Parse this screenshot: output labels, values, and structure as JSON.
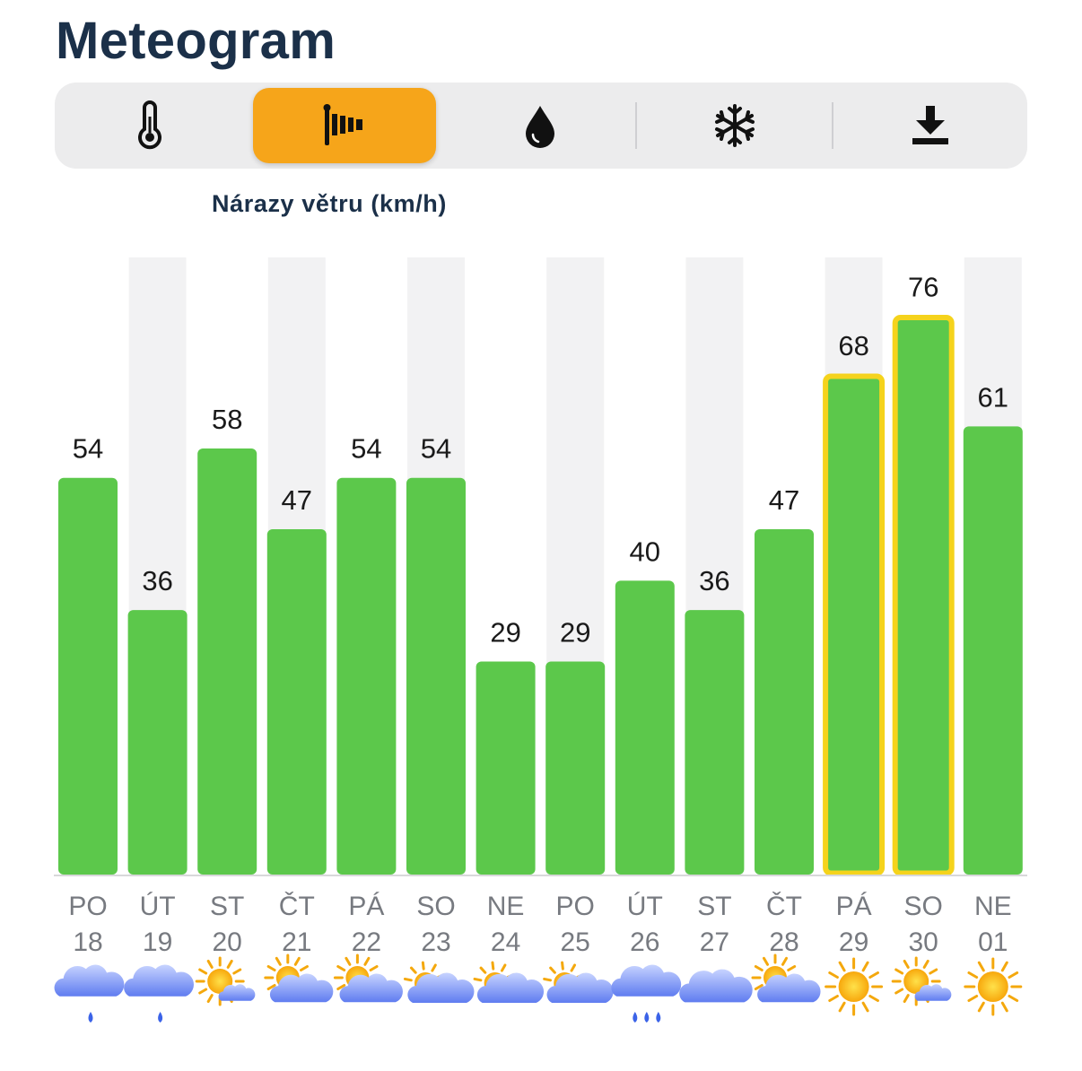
{
  "header": {
    "title": "Meteogram"
  },
  "tabs": [
    {
      "icon": "thermometer-icon",
      "active": false
    },
    {
      "icon": "windsock-icon",
      "active": true
    },
    {
      "icon": "water-drop-icon",
      "active": false
    },
    {
      "icon": "snowflake-icon",
      "active": false
    },
    {
      "icon": "download-icon",
      "active": false
    }
  ],
  "colors": {
    "bar": "#5cc84b",
    "highlight_border": "#f5d31c",
    "accent": "#f6a51a",
    "title": "#1b3049"
  },
  "chart_data": {
    "type": "bar",
    "title": "Nárazy větru (km/h)",
    "categories": [
      {
        "day": "PO",
        "date": "18"
      },
      {
        "day": "ÚT",
        "date": "19"
      },
      {
        "day": "ST",
        "date": "20"
      },
      {
        "day": "ČT",
        "date": "21"
      },
      {
        "day": "PÁ",
        "date": "22"
      },
      {
        "day": "SO",
        "date": "23"
      },
      {
        "day": "NE",
        "date": "24"
      },
      {
        "day": "PO",
        "date": "25"
      },
      {
        "day": "ÚT",
        "date": "26"
      },
      {
        "day": "ST",
        "date": "27"
      },
      {
        "day": "ČT",
        "date": "28"
      },
      {
        "day": "PÁ",
        "date": "29"
      },
      {
        "day": "SO",
        "date": "30"
      },
      {
        "day": "NE",
        "date": "01"
      }
    ],
    "values": [
      54,
      36,
      58,
      47,
      54,
      54,
      29,
      29,
      40,
      36,
      47,
      68,
      76,
      61
    ],
    "highlighted": [
      false,
      false,
      false,
      false,
      false,
      false,
      false,
      false,
      false,
      false,
      false,
      true,
      true,
      false
    ],
    "weather_icons": [
      "cloud-rain-icon",
      "cloud-rain-icon",
      "sun-small-cloud-icon",
      "sun-behind-cloud-icon",
      "sun-behind-cloud-icon",
      "cloud-sun-icon",
      "cloud-sun-icon",
      "cloud-sun-icon",
      "cloud-heavy-rain-icon",
      "cloud-icon",
      "sun-behind-cloud-icon",
      "sun-icon",
      "sun-small-cloud-icon",
      "sun-icon"
    ],
    "ylim": [
      0,
      84
    ],
    "grid": false
  }
}
